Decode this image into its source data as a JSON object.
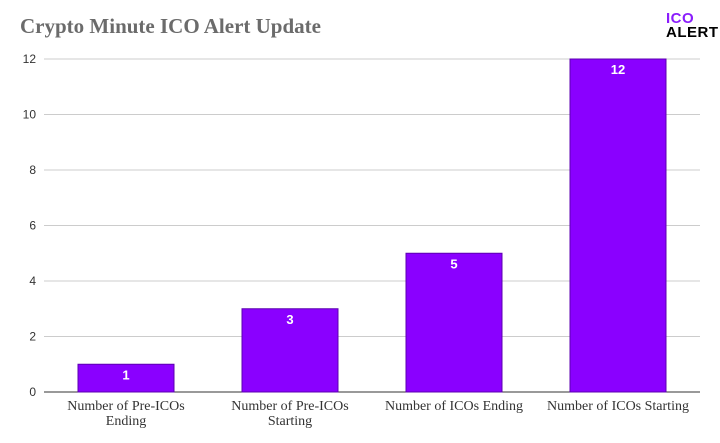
{
  "header": {
    "title": "Crypto Minute ICO Alert Update",
    "logo_line1": "ICO",
    "logo_line2": "ALERT"
  },
  "colors": {
    "bar": "#8a00ff",
    "bar_border": "#5c00b0",
    "grid": "#cccccc",
    "logo_accent": "#8a1dfc"
  },
  "chart_data": {
    "type": "bar",
    "title": "Crypto Minute ICO Alert Update",
    "categories": [
      [
        "Number of Pre-ICOs",
        "Ending"
      ],
      [
        "Number of Pre-ICOs",
        "Starting"
      ],
      [
        "Number of ICOs Ending"
      ],
      [
        "Number of ICOs Starting"
      ]
    ],
    "values": [
      1,
      3,
      5,
      12
    ],
    "data_labels": [
      "1",
      "3",
      "5",
      "12"
    ],
    "ylim": [
      0,
      12
    ],
    "yticks": [
      0,
      2,
      4,
      6,
      8,
      10,
      12
    ],
    "grid": true,
    "legend": "none"
  }
}
